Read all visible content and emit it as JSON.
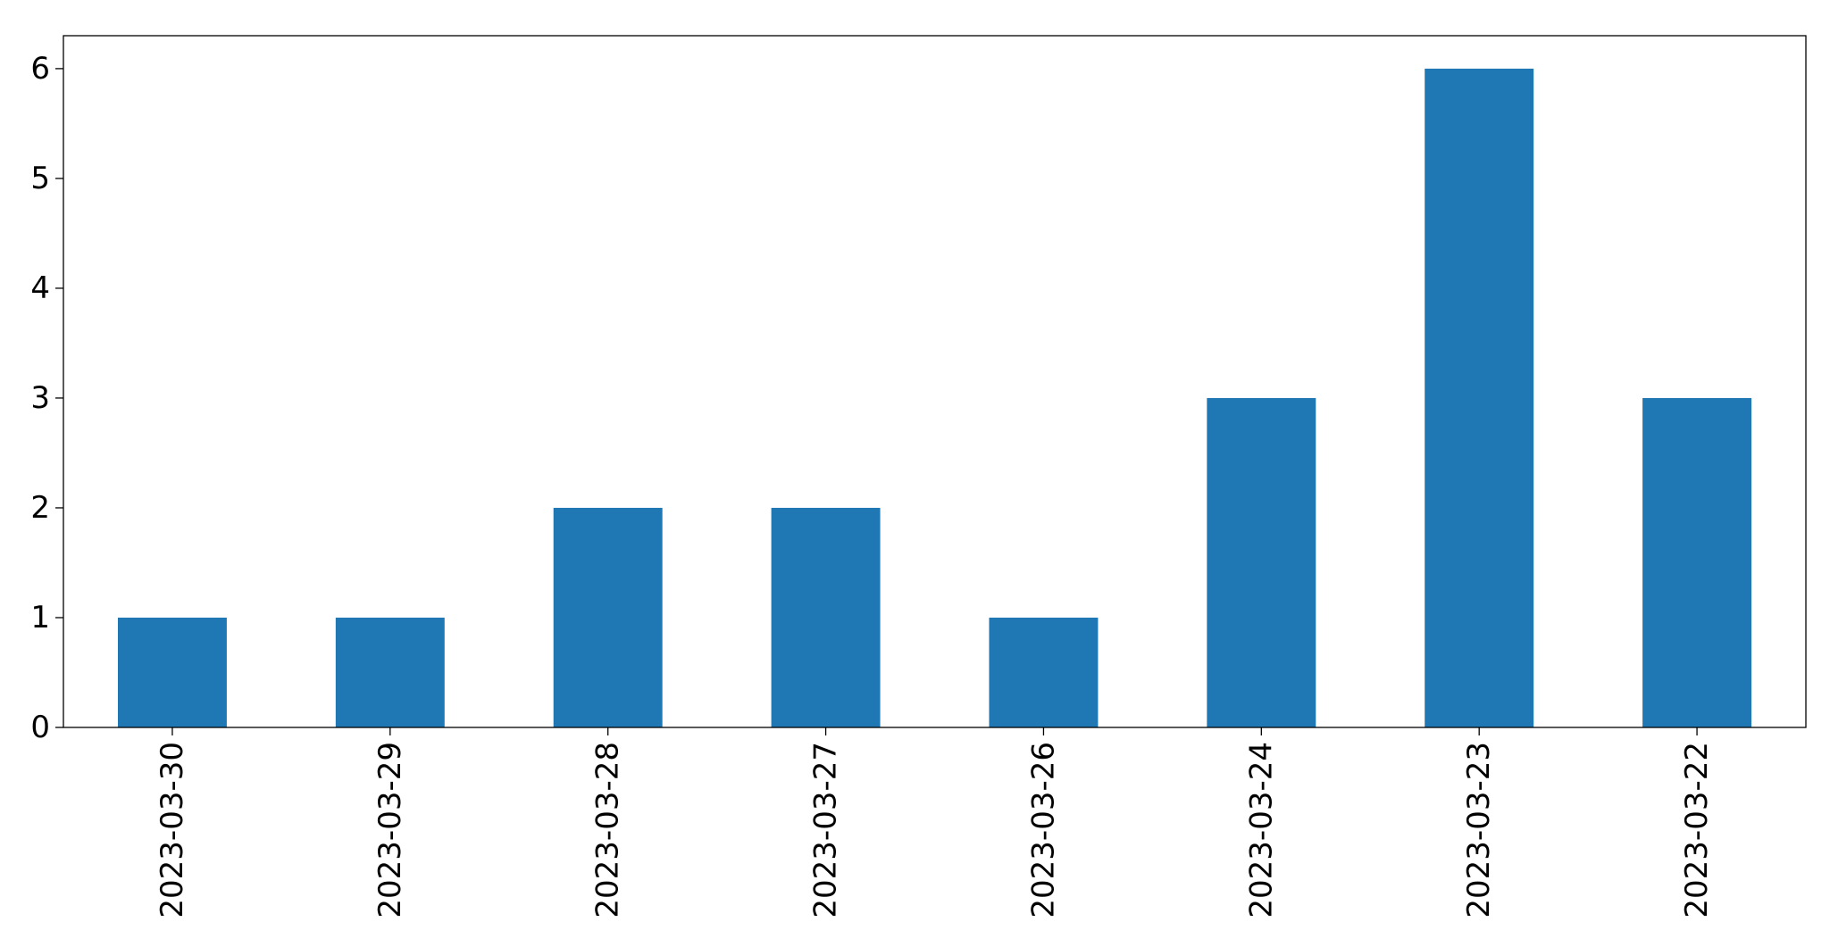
{
  "chart_data": {
    "type": "bar",
    "categories": [
      "2023-03-30",
      "2023-03-29",
      "2023-03-28",
      "2023-03-27",
      "2023-03-26",
      "2023-03-24",
      "2023-03-23",
      "2023-03-22"
    ],
    "values": [
      1,
      1,
      2,
      2,
      1,
      3,
      6,
      3
    ],
    "ylim": [
      0,
      6.3
    ],
    "yticks": [
      0,
      1,
      2,
      3,
      4,
      5,
      6
    ],
    "title": "",
    "xlabel": "",
    "ylabel": "",
    "bar_color": "#1f77b4",
    "grid": false,
    "legend": false
  }
}
